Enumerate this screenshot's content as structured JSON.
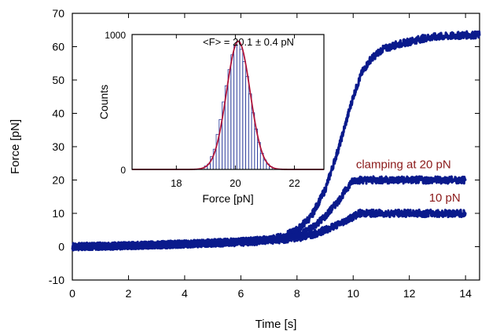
{
  "colors": {
    "trace": "#0a1a8c",
    "fit": "#b0163c",
    "annotation": "#8b1a1a",
    "histogram_bars": "#2a3a9a"
  },
  "chart_data": [
    {
      "type": "line",
      "xlabel": "Time [s]",
      "ylabel": "Force [pN]",
      "xlim": [
        0,
        14.5
      ],
      "ylim": [
        -10,
        70
      ],
      "xticks": [
        0,
        2,
        4,
        6,
        8,
        10,
        12,
        14
      ],
      "yticks": [
        -10,
        0,
        10,
        20,
        30,
        40,
        50,
        60,
        70
      ],
      "grid": false,
      "series": [
        {
          "x": [
            0,
            2,
            4,
            6,
            7,
            7.5,
            8,
            8.5,
            9,
            9.5,
            10,
            10.3,
            10.6,
            11,
            11.5,
            12,
            12.5,
            13,
            13.5,
            14,
            14.5
          ],
          "y": [
            0,
            0.3,
            0.8,
            1.5,
            2.2,
            3,
            5,
            9,
            17,
            30,
            45,
            52,
            56,
            59,
            60.5,
            61.5,
            62.5,
            63,
            63.2,
            63.5,
            63.5
          ]
        },
        {
          "x": [
            0,
            2,
            4,
            6,
            7,
            8,
            8.5,
            9,
            9.5,
            9.9,
            10.05,
            11,
            12,
            13,
            14
          ],
          "y": [
            0,
            0.3,
            0.8,
            1.5,
            2,
            3,
            5.5,
            9,
            14,
            19,
            20,
            20,
            20,
            20,
            20
          ]
        },
        {
          "x": [
            0,
            2,
            4,
            6,
            7,
            8,
            8.5,
            9,
            9.5,
            10,
            10.2,
            11,
            12,
            13,
            14
          ],
          "y": [
            0,
            0.3,
            0.8,
            1.3,
            1.8,
            2.6,
            3.5,
            5,
            6.8,
            9,
            10,
            10,
            10,
            10,
            10
          ]
        }
      ],
      "annotations": [
        {
          "text": "clamping at 20 pN",
          "x": 10.1,
          "y": 23.5
        },
        {
          "text": "10 pN",
          "x": 12.7,
          "y": 13.5
        }
      ]
    },
    {
      "type": "bar",
      "title": "<F> = 20.1 ± 0.4 pN",
      "xlabel": "Force [pN]",
      "ylabel": "Counts",
      "xlim": [
        16.5,
        23
      ],
      "ylim": [
        0,
        1000
      ],
      "xticks": [
        18,
        20,
        22
      ],
      "yticks": [
        0,
        1000
      ],
      "bin_width": 0.1,
      "bins_x": [
        19.0,
        19.1,
        19.2,
        19.3,
        19.4,
        19.5,
        19.6,
        19.7,
        19.8,
        19.9,
        20.0,
        20.1,
        20.2,
        20.3,
        20.4,
        20.5,
        20.6,
        20.7,
        20.8,
        20.9,
        21.0,
        21.1,
        21.2
      ],
      "counts": [
        25,
        40,
        95,
        150,
        260,
        370,
        500,
        620,
        740,
        850,
        920,
        950,
        890,
        800,
        690,
        560,
        420,
        300,
        200,
        120,
        70,
        40,
        20
      ],
      "fit": {
        "mean": 20.1,
        "sigma": 0.4,
        "peak": 950
      }
    }
  ]
}
